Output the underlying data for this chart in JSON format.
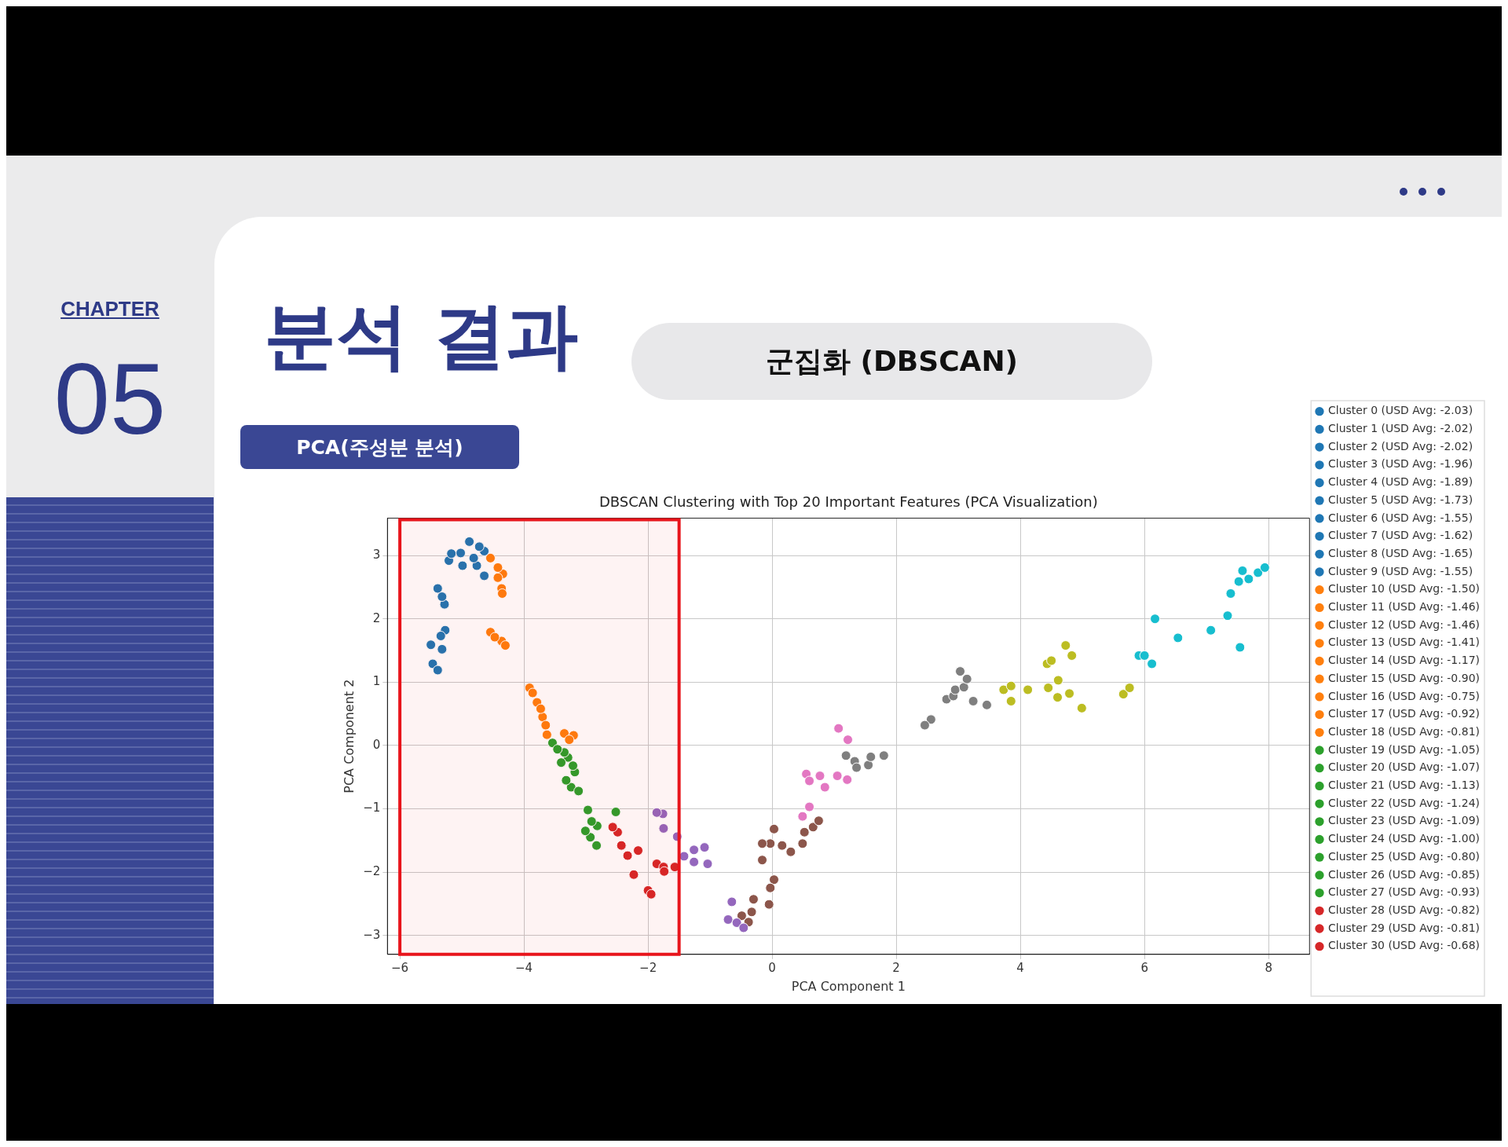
{
  "chart_data": {
    "type": "scatter",
    "title": "DBSCAN Clustering with Top 20 Important Features (PCA Visualization)",
    "xlabel": "PCA Component 1",
    "ylabel": "PCA Component 2",
    "annotations": [
      "CHAPTER",
      "05",
      "분석 결과",
      "군집화 (DBSCAN)",
      "PCA(주성분 분석)"
    ],
    "xlim": [
      -6.2,
      8.66
    ],
    "ylim": [
      -3.3,
      3.59
    ],
    "xticks": [
      {
        "value": -6,
        "label": "−6"
      },
      {
        "value": -4,
        "label": "−4"
      },
      {
        "value": -2,
        "label": "−2"
      },
      0,
      2,
      4,
      6,
      8
    ],
    "yticks": [
      {
        "value": -3,
        "label": "−3"
      },
      {
        "value": -2,
        "label": "−2"
      },
      {
        "value": -1,
        "label": "−1"
      },
      0,
      1,
      2,
      3
    ],
    "grid": true,
    "legend": "right",
    "marker": "circle",
    "bands": [
      {
        "axis": "x",
        "from": -6,
        "to": -1.5,
        "label": null,
        "color": "#e8141b"
      }
    ],
    "series": [
      {
        "name": "Cluster 0 (USD Avg: -2.03)",
        "color": "#1f77b4",
        "x": [
          -5.17,
          -5.02
        ],
        "values": [
          3.03,
          3.04
        ]
      },
      {
        "name": "Cluster 1 (USD Avg: -2.02)",
        "color": "#1f77b4",
        "x": [
          -5.21,
          -4.99
        ],
        "values": [
          2.92,
          2.84
        ]
      },
      {
        "name": "Cluster 2 (USD Avg: -2.02)",
        "color": "#1f77b4",
        "x": [
          -4.88,
          -4.72
        ],
        "values": [
          3.22,
          3.14
        ]
      },
      {
        "name": "Cluster 3 (USD Avg: -1.96)",
        "color": "#1f77b4",
        "x": [
          -4.64,
          -4.81
        ],
        "values": [
          3.07,
          2.96
        ]
      },
      {
        "name": "Cluster 4 (USD Avg: -1.89)",
        "color": "#1f77b4",
        "x": [
          -4.76,
          -4.64
        ],
        "values": [
          2.84,
          2.68
        ]
      },
      {
        "name": "Cluster 5 (USD Avg: -1.73)",
        "color": "#1f77b4",
        "x": [
          -5.39,
          -5.32
        ],
        "values": [
          2.48,
          2.35
        ]
      },
      {
        "name": "Cluster 6 (USD Avg: -1.55)",
        "color": "#1f77b4",
        "x": [
          -5.28
        ],
        "values": [
          2.23
        ]
      },
      {
        "name": "Cluster 7 (USD Avg: -1.62)",
        "color": "#1f77b4",
        "x": [
          -5.27,
          -5.34
        ],
        "values": [
          1.82,
          1.73
        ]
      },
      {
        "name": "Cluster 8 (USD Avg: -1.65)",
        "color": "#1f77b4",
        "x": [
          -5.5,
          -5.32
        ],
        "values": [
          1.59,
          1.52
        ]
      },
      {
        "name": "Cluster 9 (USD Avg: -1.55)",
        "color": "#1f77b4",
        "x": [
          -5.47,
          -5.39
        ],
        "values": [
          1.29,
          1.19
        ]
      },
      {
        "name": "Cluster 10 (USD Avg: -1.50)",
        "color": "#ff7f0e",
        "x": [
          -4.54,
          -4.42,
          -4.42
        ],
        "values": [
          2.96,
          2.81,
          2.65
        ]
      },
      {
        "name": "Cluster 11 (USD Avg: -1.46)",
        "color": "#ff7f0e",
        "x": [
          -4.34,
          -4.36,
          -4.35
        ],
        "values": [
          2.71,
          2.48,
          2.4
        ]
      },
      {
        "name": "Cluster 12 (USD Avg: -1.46)",
        "color": "#ff7f0e",
        "x": [
          -4.54,
          -4.47
        ],
        "values": [
          1.79,
          1.71
        ]
      },
      {
        "name": "Cluster 13 (USD Avg: -1.41)",
        "color": "#ff7f0e",
        "x": [
          -4.36,
          -4.3
        ],
        "values": [
          1.65,
          1.58
        ]
      },
      {
        "name": "Cluster 14 (USD Avg: -1.17)",
        "color": "#ff7f0e",
        "x": [
          -3.91,
          -3.86
        ],
        "values": [
          0.91,
          0.83
        ]
      },
      {
        "name": "Cluster 15 (USD Avg: -0.90)",
        "color": "#ff7f0e",
        "x": [
          -3.79,
          -3.73
        ],
        "values": [
          0.68,
          0.58
        ]
      },
      {
        "name": "Cluster 16 (USD Avg: -0.75)",
        "color": "#ff7f0e",
        "x": [
          -3.7,
          -3.65
        ],
        "values": [
          0.45,
          0.32
        ]
      },
      {
        "name": "Cluster 17 (USD Avg: -0.92)",
        "color": "#ff7f0e",
        "x": [
          -3.63
        ],
        "values": [
          0.17
        ]
      },
      {
        "name": "Cluster 18 (USD Avg: -0.81)",
        "color": "#ff7f0e",
        "x": [
          -3.35,
          -3.2,
          -3.27
        ],
        "values": [
          0.19,
          0.16,
          0.09
        ]
      },
      {
        "name": "Cluster 19 (USD Avg: -1.05)",
        "color": "#2ca02c",
        "x": [
          -3.54,
          -3.46
        ],
        "values": [
          0.04,
          -0.06
        ]
      },
      {
        "name": "Cluster 20 (USD Avg: -1.07)",
        "color": "#2ca02c",
        "x": [
          -3.35,
          -3.4
        ],
        "values": [
          -0.11,
          -0.27
        ]
      },
      {
        "name": "Cluster 21 (USD Avg: -1.13)",
        "color": "#2ca02c",
        "x": [
          -3.29,
          -3.21
        ],
        "values": [
          -0.19,
          -0.32
        ]
      },
      {
        "name": "Cluster 22 (USD Avg: -1.24)",
        "color": "#2ca02c",
        "x": [
          -3.18,
          -3.32
        ],
        "values": [
          -0.42,
          -0.55
        ]
      },
      {
        "name": "Cluster 23 (USD Avg: -1.09)",
        "color": "#2ca02c",
        "x": [
          -3.24,
          -3.12
        ],
        "values": [
          -0.66,
          -0.72
        ]
      },
      {
        "name": "Cluster 24 (USD Avg: -1.00)",
        "color": "#2ca02c",
        "x": [
          -2.97,
          -2.91
        ],
        "values": [
          -1.02,
          -1.2
        ]
      },
      {
        "name": "Cluster 25 (USD Avg: -0.80)",
        "color": "#2ca02c",
        "x": [
          -2.82,
          -3.01
        ],
        "values": [
          -1.27,
          -1.35
        ]
      },
      {
        "name": "Cluster 26 (USD Avg: -0.85)",
        "color": "#2ca02c",
        "x": [
          -2.93,
          -2.83
        ],
        "values": [
          -1.45,
          -1.58
        ]
      },
      {
        "name": "Cluster 27 (USD Avg: -0.93)",
        "color": "#2ca02c",
        "x": [
          -2.52
        ],
        "values": [
          -1.05
        ]
      },
      {
        "name": "Cluster 28 (USD Avg: -0.82)",
        "color": "#d62728",
        "x": [
          -2.49,
          -2.57,
          -2.43,
          -2.33
        ],
        "values": [
          -1.37,
          -1.29,
          -1.58,
          -1.74
        ]
      },
      {
        "name": "Cluster 29 (USD Avg: -0.81)",
        "color": "#d62728",
        "x": [
          -2.16,
          -2.23,
          -2.0,
          -1.95
        ],
        "values": [
          -1.66,
          -2.04,
          -2.29,
          -2.35
        ]
      },
      {
        "name": "Cluster 30 (USD Avg: -0.68)",
        "color": "#d62728",
        "x": [
          -1.86,
          -1.75,
          -1.57,
          -1.74
        ],
        "values": [
          -1.87,
          -1.92,
          -1.92,
          -1.99
        ]
      },
      {
        "color": "#9467bd",
        "x": [
          -1.76,
          -1.86,
          -1.75,
          -1.53,
          -1.42,
          -1.26,
          -1.09,
          -1.04,
          -1.26,
          -0.65,
          -0.71,
          -0.57,
          -0.46
        ],
        "values": [
          -1.08,
          -1.06,
          -1.31,
          -1.44,
          -1.75,
          -1.65,
          -1.61,
          -1.87,
          -1.84,
          -2.47,
          -2.75,
          -2.8,
          -2.88
        ]
      },
      {
        "color": "#8c564b",
        "x": [
          0.03,
          -0.03,
          -0.16,
          -0.16,
          0.16,
          0.3,
          0.49,
          0.52,
          0.66,
          0.75,
          0.03,
          -0.03,
          -0.05,
          -0.3,
          -0.33,
          -0.49,
          -0.38
        ],
        "values": [
          -1.32,
          -1.55,
          -1.55,
          -1.81,
          -1.58,
          -1.68,
          -1.55,
          -1.37,
          -1.29,
          -1.19,
          -2.12,
          -2.25,
          -2.51,
          -2.43,
          -2.63,
          -2.69,
          -2.79
        ]
      },
      {
        "color": "#e377c2",
        "x": [
          1.07,
          0.55,
          0.77,
          0.85,
          0.6,
          1.05,
          0.6,
          0.49,
          1.22,
          1.21
        ],
        "values": [
          0.27,
          -0.45,
          -0.48,
          -0.66,
          -0.56,
          -0.48,
          -0.97,
          -1.12,
          0.09,
          -0.54
        ]
      },
      {
        "color": "#7f7f7f",
        "x": [
          1.19,
          1.33,
          1.55,
          1.59,
          1.8,
          1.36,
          2.56,
          2.46,
          2.81,
          2.92,
          2.95,
          3.09,
          3.03,
          3.14,
          3.24,
          3.46
        ],
        "values": [
          -0.16,
          -0.25,
          -0.31,
          -0.18,
          -0.16,
          -0.35,
          0.41,
          0.32,
          0.73,
          0.78,
          0.88,
          0.92,
          1.17,
          1.05,
          0.7,
          0.64
        ]
      },
      {
        "color": "#bcbd22",
        "x": [
          3.73,
          3.85,
          3.85,
          4.12,
          4.43,
          4.5,
          4.73,
          4.83,
          4.45,
          4.61,
          4.6,
          4.79,
          4.99,
          5.66,
          5.76
        ],
        "values": [
          0.88,
          0.94,
          0.7,
          0.88,
          1.29,
          1.34,
          1.58,
          1.42,
          0.91,
          1.03,
          0.76,
          0.82,
          0.59,
          0.81,
          0.91
        ]
      },
      {
        "color": "#17becf",
        "x": [
          5.91,
          6.0,
          6.12,
          6.17,
          6.54,
          7.07,
          7.34,
          7.54,
          7.39,
          7.52,
          7.58,
          7.68,
          7.83,
          7.94
        ],
        "values": [
          1.42,
          1.42,
          1.29,
          2.0,
          1.7,
          1.82,
          2.05,
          1.55,
          2.4,
          2.59,
          2.76,
          2.63,
          2.73,
          2.81
        ]
      }
    ]
  }
}
